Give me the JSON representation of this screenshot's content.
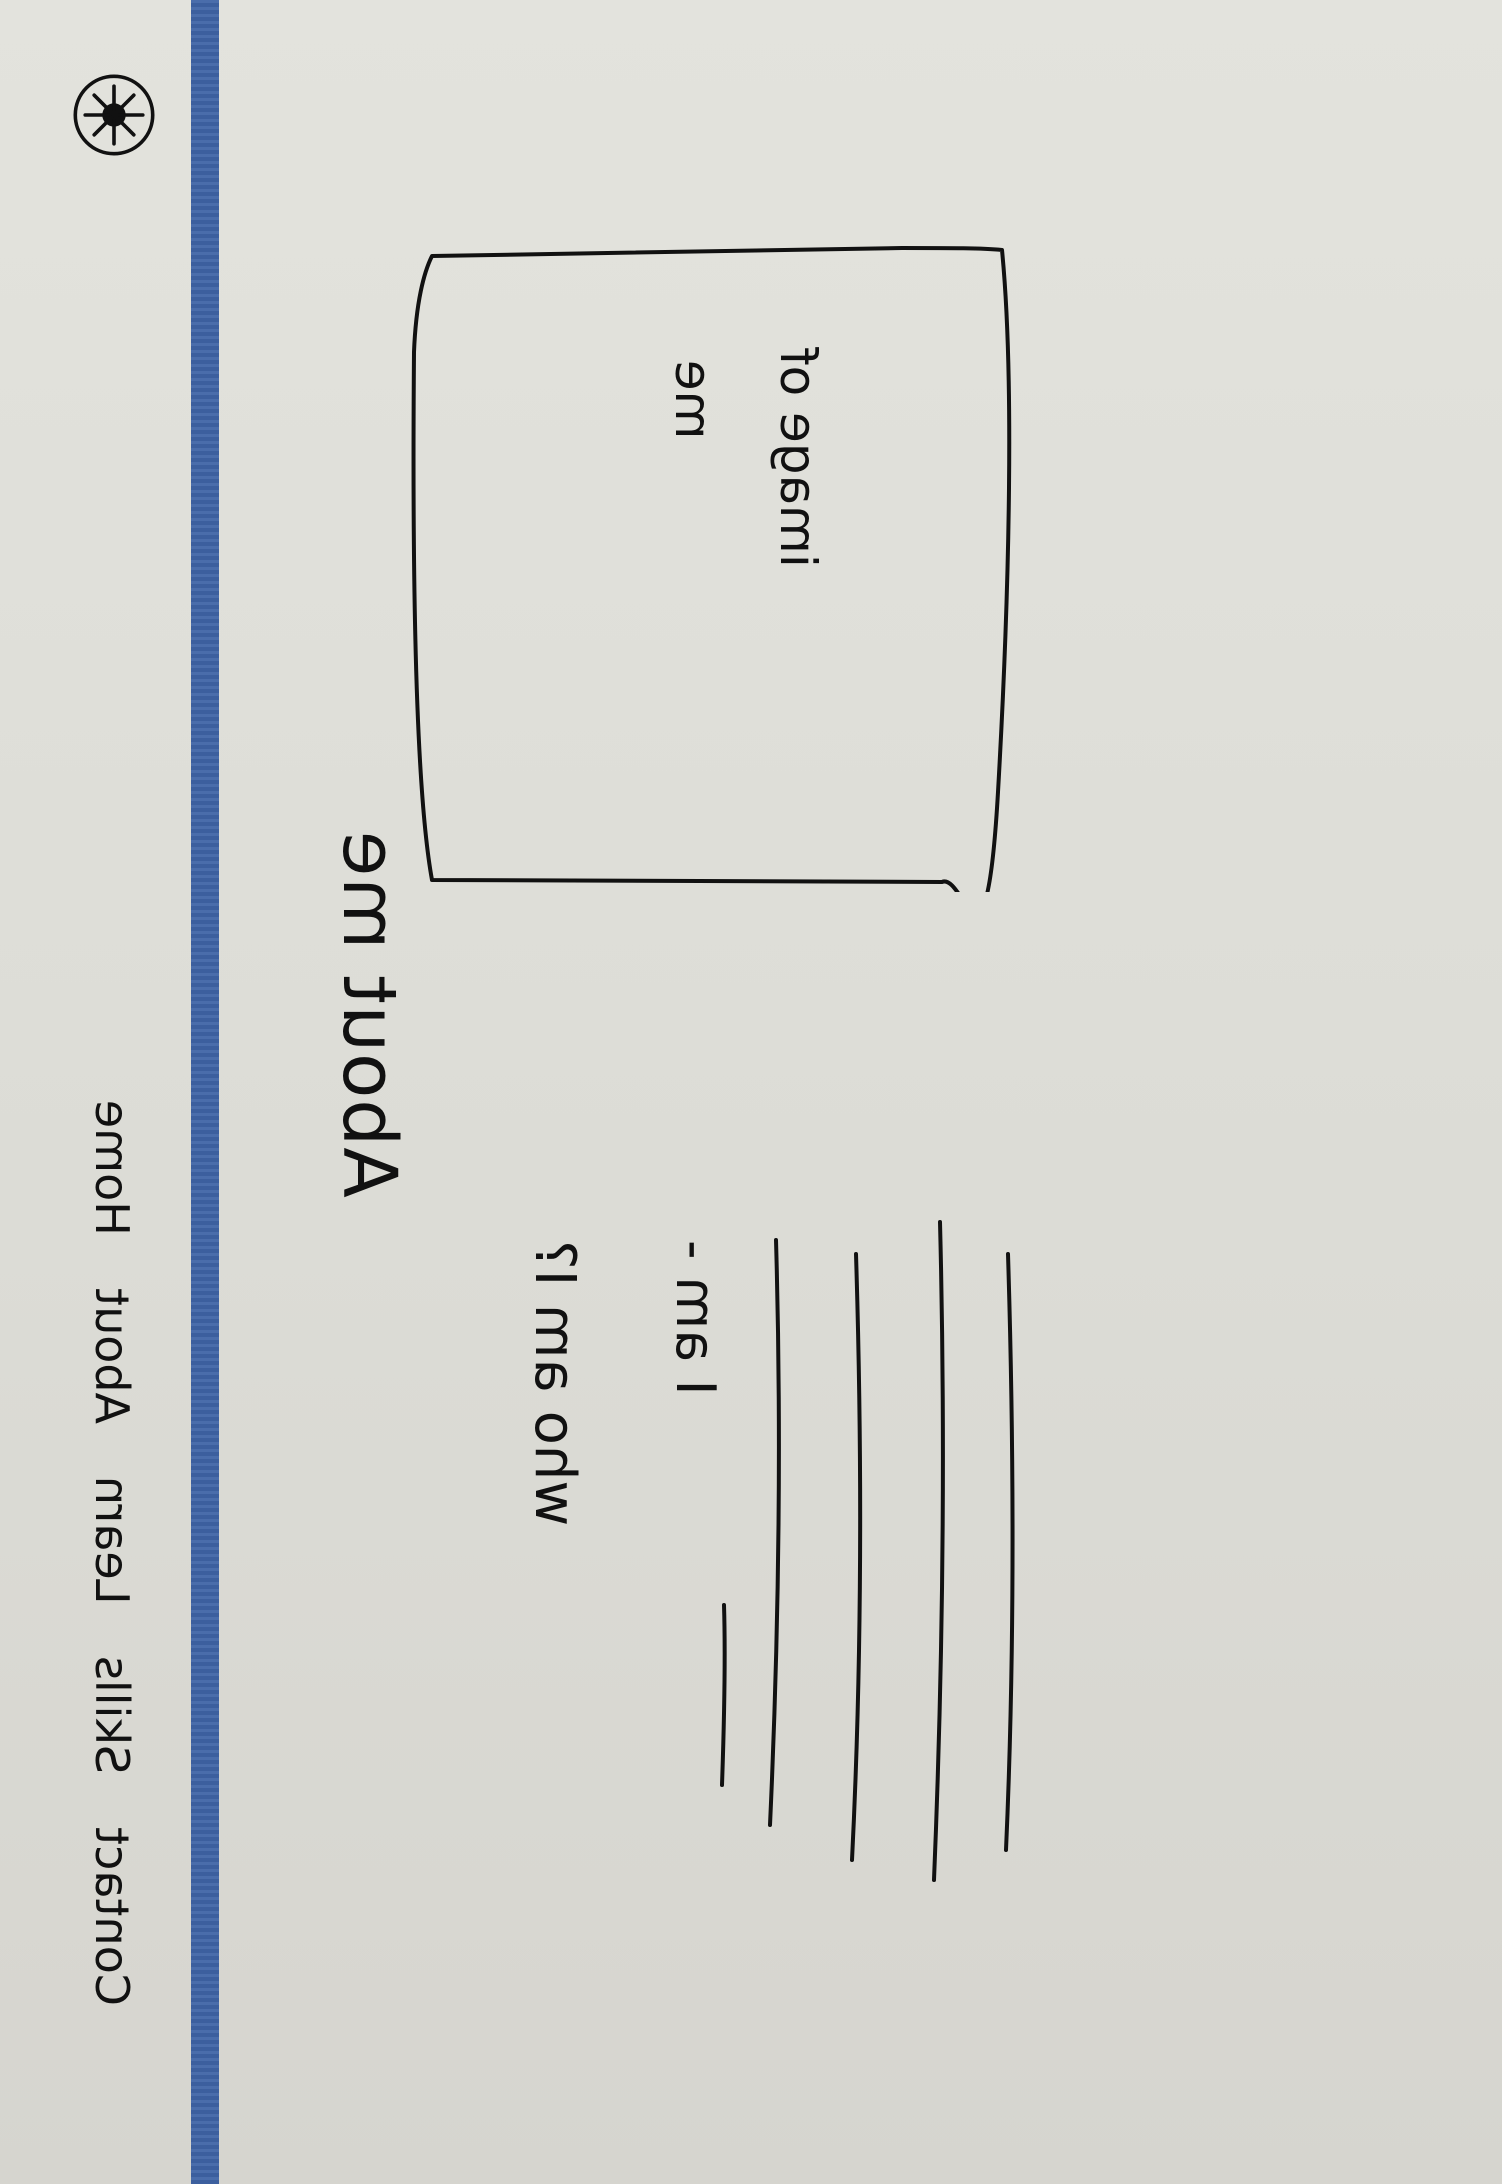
{
  "nav": {
    "items": [
      "Home",
      "About",
      "Learn",
      "Skills",
      "Contact"
    ]
  },
  "main": {
    "heading": "About me",
    "image_placeholder": {
      "line1": "image of",
      "line2": "me"
    },
    "intro": {
      "question": "who am I?",
      "answer_prefix": "I am -"
    }
  },
  "colors": {
    "header_bar": "#3f64a6",
    "ink": "#111111",
    "paper": "#dcdcd6"
  },
  "icons": {
    "logo": "star-logo-icon"
  }
}
